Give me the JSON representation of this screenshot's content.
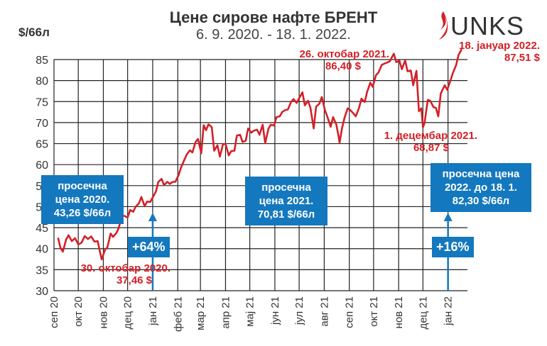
{
  "header": {
    "title": "Цене сирове нафте БРЕНТ",
    "subtitle": "6. 9. 2020. - 18. 1. 2022.",
    "unit": "$/66л",
    "logo_text": "UNKS"
  },
  "colors": {
    "line": "#d32027",
    "box": "#1478be",
    "grid": "#222222",
    "text": "#333333"
  },
  "chart_data": {
    "type": "line",
    "title": "Цене сирове нафте БРЕНТ",
    "subtitle": "6. 9. 2020. - 18. 1. 2022.",
    "ylabel": "$/66л",
    "ylim": [
      30,
      87
    ],
    "yticks": [
      30,
      35,
      40,
      45,
      50,
      55,
      60,
      65,
      70,
      75,
      80,
      85
    ],
    "xlim": [
      "2020-09-06",
      "2022-01-18"
    ],
    "xticks": [
      {
        "date": "2020-09-01",
        "label": "сеп 20"
      },
      {
        "date": "2020-10-01",
        "label": "окт 20"
      },
      {
        "date": "2020-11-01",
        "label": "нов 20"
      },
      {
        "date": "2020-12-01",
        "label": "дец 20"
      },
      {
        "date": "2021-01-01",
        "label": "јан 21"
      },
      {
        "date": "2021-02-01",
        "label": "феб 21"
      },
      {
        "date": "2021-03-01",
        "label": "мар 21"
      },
      {
        "date": "2021-04-01",
        "label": "апр 21"
      },
      {
        "date": "2021-05-01",
        "label": "мај 21"
      },
      {
        "date": "2021-06-01",
        "label": "јун 21"
      },
      {
        "date": "2021-07-01",
        "label": "јул 21"
      },
      {
        "date": "2021-08-01",
        "label": "авг 21"
      },
      {
        "date": "2021-09-01",
        "label": "сеп 21"
      },
      {
        "date": "2021-10-01",
        "label": "окт 21"
      },
      {
        "date": "2021-11-01",
        "label": "нов 21"
      },
      {
        "date": "2021-12-01",
        "label": "дец 21"
      },
      {
        "date": "2022-01-01",
        "label": "јан 22"
      }
    ],
    "series": [
      {
        "values": [
          [
            "2020-09-06",
            42.6
          ],
          [
            "2020-09-09",
            40.2
          ],
          [
            "2020-09-12",
            39.3
          ],
          [
            "2020-09-16",
            42.2
          ],
          [
            "2020-09-19",
            43.2
          ],
          [
            "2020-09-23",
            41.8
          ],
          [
            "2020-09-27",
            42.5
          ],
          [
            "2020-10-01",
            41.0
          ],
          [
            "2020-10-05",
            41.4
          ],
          [
            "2020-10-09",
            43.0
          ],
          [
            "2020-10-13",
            42.3
          ],
          [
            "2020-10-17",
            42.9
          ],
          [
            "2020-10-21",
            41.7
          ],
          [
            "2020-10-25",
            41.8
          ],
          [
            "2020-10-28",
            39.1
          ],
          [
            "2020-10-30",
            37.46
          ],
          [
            "2020-11-03",
            39.7
          ],
          [
            "2020-11-06",
            40.3
          ],
          [
            "2020-11-10",
            43.6
          ],
          [
            "2020-11-13",
            42.8
          ],
          [
            "2020-11-17",
            43.7
          ],
          [
            "2020-11-20",
            44.9
          ],
          [
            "2020-11-24",
            47.9
          ],
          [
            "2020-11-27",
            47.8
          ],
          [
            "2020-12-01",
            47.4
          ],
          [
            "2020-12-04",
            49.2
          ],
          [
            "2020-12-08",
            48.8
          ],
          [
            "2020-12-11",
            50.0
          ],
          [
            "2020-12-15",
            50.8
          ],
          [
            "2020-12-18",
            52.3
          ],
          [
            "2020-12-22",
            50.1
          ],
          [
            "2020-12-25",
            51.2
          ],
          [
            "2020-12-29",
            51.1
          ],
          [
            "2021-01-05",
            53.6
          ],
          [
            "2021-01-08",
            55.9
          ],
          [
            "2021-01-12",
            56.6
          ],
          [
            "2021-01-15",
            55.1
          ],
          [
            "2021-01-19",
            55.9
          ],
          [
            "2021-01-22",
            55.4
          ],
          [
            "2021-01-26",
            55.9
          ],
          [
            "2021-01-29",
            55.9
          ],
          [
            "2021-02-02",
            57.5
          ],
          [
            "2021-02-05",
            59.3
          ],
          [
            "2021-02-09",
            61.1
          ],
          [
            "2021-02-12",
            62.4
          ],
          [
            "2021-02-16",
            63.4
          ],
          [
            "2021-02-19",
            62.9
          ],
          [
            "2021-02-23",
            65.4
          ],
          [
            "2021-02-26",
            66.1
          ],
          [
            "2021-03-02",
            62.7
          ],
          [
            "2021-03-05",
            69.4
          ],
          [
            "2021-03-08",
            68.2
          ],
          [
            "2021-03-11",
            69.6
          ],
          [
            "2021-03-15",
            68.9
          ],
          [
            "2021-03-18",
            63.3
          ],
          [
            "2021-03-22",
            64.6
          ],
          [
            "2021-03-25",
            61.9
          ],
          [
            "2021-03-29",
            64.9
          ],
          [
            "2021-04-01",
            64.9
          ],
          [
            "2021-04-05",
            62.2
          ],
          [
            "2021-04-08",
            63.2
          ],
          [
            "2021-04-12",
            63.3
          ],
          [
            "2021-04-15",
            66.9
          ],
          [
            "2021-04-19",
            67.1
          ],
          [
            "2021-04-22",
            65.4
          ],
          [
            "2021-04-26",
            65.7
          ],
          [
            "2021-04-29",
            68.6
          ],
          [
            "2021-05-03",
            67.6
          ],
          [
            "2021-05-06",
            68.1
          ],
          [
            "2021-05-10",
            68.3
          ],
          [
            "2021-05-13",
            67.1
          ],
          [
            "2021-05-17",
            69.5
          ],
          [
            "2021-05-20",
            65.1
          ],
          [
            "2021-05-24",
            68.5
          ],
          [
            "2021-05-27",
            69.5
          ],
          [
            "2021-05-31",
            69.3
          ],
          [
            "2021-06-03",
            71.3
          ],
          [
            "2021-06-07",
            71.5
          ],
          [
            "2021-06-10",
            72.5
          ],
          [
            "2021-06-14",
            73.0
          ],
          [
            "2021-06-17",
            73.1
          ],
          [
            "2021-06-21",
            74.9
          ],
          [
            "2021-06-24",
            75.6
          ],
          [
            "2021-06-28",
            74.7
          ],
          [
            "2021-07-01",
            75.8
          ],
          [
            "2021-07-05",
            77.2
          ],
          [
            "2021-07-08",
            74.1
          ],
          [
            "2021-07-12",
            75.2
          ],
          [
            "2021-07-15",
            73.5
          ],
          [
            "2021-07-19",
            68.6
          ],
          [
            "2021-07-22",
            73.8
          ],
          [
            "2021-07-26",
            74.5
          ],
          [
            "2021-07-29",
            76.1
          ],
          [
            "2021-08-02",
            72.9
          ],
          [
            "2021-08-05",
            71.3
          ],
          [
            "2021-08-09",
            69.0
          ],
          [
            "2021-08-12",
            71.3
          ],
          [
            "2021-08-16",
            69.5
          ],
          [
            "2021-08-19",
            66.5
          ],
          [
            "2021-08-20",
            65.2
          ],
          [
            "2021-08-23",
            68.7
          ],
          [
            "2021-08-26",
            71.1
          ],
          [
            "2021-08-30",
            73.4
          ],
          [
            "2021-09-02",
            73.0
          ],
          [
            "2021-09-06",
            72.2
          ],
          [
            "2021-09-09",
            71.5
          ],
          [
            "2021-09-13",
            73.5
          ],
          [
            "2021-09-16",
            75.7
          ],
          [
            "2021-09-20",
            74.9
          ],
          [
            "2021-09-23",
            77.3
          ],
          [
            "2021-09-27",
            79.5
          ],
          [
            "2021-09-30",
            78.5
          ],
          [
            "2021-10-04",
            81.3
          ],
          [
            "2021-10-07",
            81.9
          ],
          [
            "2021-10-11",
            83.7
          ],
          [
            "2021-10-14",
            84.0
          ],
          [
            "2021-10-18",
            84.3
          ],
          [
            "2021-10-21",
            84.6
          ],
          [
            "2021-10-26",
            86.4
          ],
          [
            "2021-10-29",
            84.4
          ],
          [
            "2021-11-02",
            84.7
          ],
          [
            "2021-11-05",
            82.7
          ],
          [
            "2021-11-09",
            84.8
          ],
          [
            "2021-11-12",
            82.2
          ],
          [
            "2021-11-16",
            82.4
          ],
          [
            "2021-11-19",
            78.9
          ],
          [
            "2021-11-23",
            82.3
          ],
          [
            "2021-11-26",
            72.7
          ],
          [
            "2021-11-29",
            73.4
          ],
          [
            "2021-12-01",
            68.87
          ],
          [
            "2021-12-03",
            69.9
          ],
          [
            "2021-12-07",
            75.4
          ],
          [
            "2021-12-10",
            75.2
          ],
          [
            "2021-12-14",
            73.7
          ],
          [
            "2021-12-17",
            73.5
          ],
          [
            "2021-12-20",
            71.5
          ],
          [
            "2021-12-23",
            76.9
          ],
          [
            "2021-12-28",
            78.9
          ],
          [
            "2021-12-31",
            77.8
          ],
          [
            "2022-01-04",
            80.0
          ],
          [
            "2022-01-07",
            81.8
          ],
          [
            "2022-01-11",
            83.7
          ],
          [
            "2022-01-14",
            86.1
          ],
          [
            "2022-01-18",
            87.51
          ]
        ]
      }
    ],
    "annotations": [
      {
        "line1": "30. октобар 2020.",
        "line2": "37,46 $"
      },
      {
        "line1": "26. октобар 2021.",
        "line2": "86,40 $"
      },
      {
        "line1": "1. децембар 2021.",
        "line2": "68,87 $"
      },
      {
        "line1": "18. јануар 2022.",
        "line2": "87,51 $"
      }
    ],
    "boxes": [
      {
        "lines": [
          "просечна",
          "цена 2020.",
          "43,26 $/66л"
        ]
      },
      {
        "lines": [
          "просечна",
          "цена 2021.",
          "70,81 $/66л"
        ]
      },
      {
        "lines": [
          "просечна цена",
          "2022. до 18. 1.",
          "82,30 $/66л"
        ]
      }
    ],
    "changes": [
      {
        "label": "+64%",
        "date": "2021-01-01"
      },
      {
        "label": "+16%",
        "date": "2022-01-01"
      }
    ]
  }
}
